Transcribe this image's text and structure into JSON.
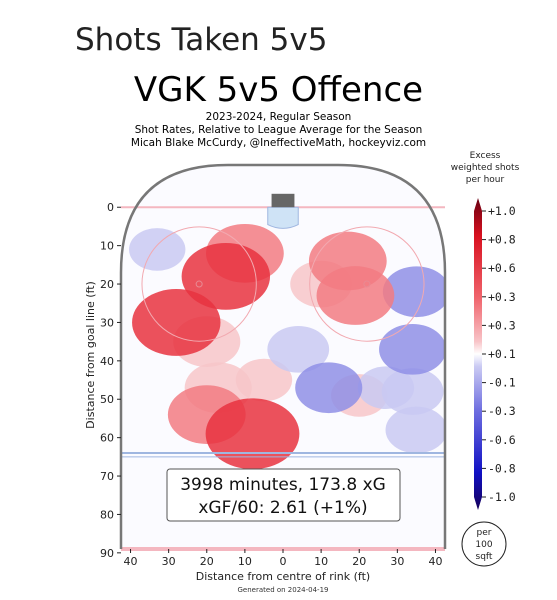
{
  "page_title": "Shots Taken 5v5",
  "chart_data": {
    "type": "heatmap",
    "title": "VGK 5v5 Offence",
    "subtitle_lines": [
      "2023-2024, Regular Season",
      "Shot Rates, Relative to League Average for the Season",
      "Micah Blake McCurdy, @IneffectiveMath, hockeyviz.com"
    ],
    "xlabel": "Distance from centre of rink (ft)",
    "ylabel": "Distance from goal line (ft)",
    "x_ticks": [
      "40",
      "30",
      "20",
      "10",
      "0",
      "10",
      "20",
      "30",
      "40"
    ],
    "y_ticks": [
      "0",
      "10",
      "20",
      "30",
      "40",
      "50",
      "60",
      "70",
      "80",
      "90"
    ],
    "x_range": [
      -42.5,
      42.5
    ],
    "y_range": [
      -11,
      89
    ],
    "colorbar": {
      "title_lines": [
        "Excess",
        "weighted shots",
        "per hour"
      ],
      "tick_labels": [
        "+1.0",
        "+0.8",
        "+0.6",
        "+0.3",
        "+0.3",
        "+0.1",
        "-0.1",
        "-0.3",
        "-0.6",
        "-0.8",
        "-1.0"
      ],
      "range": [
        -1.0,
        1.0
      ]
    },
    "unit_badge_lines": [
      "per",
      "100",
      "sqft"
    ],
    "summary_lines": [
      "3998 minutes, 173.8 xG",
      "xGF/60: 2.61 (+1%)"
    ],
    "minutes": 3998,
    "xG": 173.8,
    "xGF60": 2.61,
    "xGF60_relative": "+1%",
    "excess_regions": [
      {
        "x": -10,
        "y": 12,
        "value": 0.3
      },
      {
        "x": -15,
        "y": 18,
        "value": 0.4
      },
      {
        "x": -28,
        "y": 30,
        "value": 0.4
      },
      {
        "x": -20,
        "y": 35,
        "value": 0.2
      },
      {
        "x": -5,
        "y": 45,
        "value": 0.1
      },
      {
        "x": -17,
        "y": 47,
        "value": 0.2
      },
      {
        "x": -20,
        "y": 54,
        "value": 0.3
      },
      {
        "x": -8,
        "y": 59,
        "value": 0.45
      },
      {
        "x": 17,
        "y": 14,
        "value": 0.3
      },
      {
        "x": 19,
        "y": 23,
        "value": 0.3
      },
      {
        "x": 10,
        "y": 20,
        "value": 0.15
      },
      {
        "x": 20,
        "y": 49,
        "value": 0.1
      },
      {
        "x": -33,
        "y": 11,
        "value": -0.1
      },
      {
        "x": 35,
        "y": 22,
        "value": -0.2
      },
      {
        "x": 34,
        "y": 37,
        "value": -0.2
      },
      {
        "x": 4,
        "y": 37,
        "value": -0.15
      },
      {
        "x": 12,
        "y": 47,
        "value": -0.2
      },
      {
        "x": 34,
        "y": 48,
        "value": -0.15
      },
      {
        "x": 35,
        "y": 58,
        "value": -0.15
      },
      {
        "x": 27,
        "y": 47,
        "value": -0.1
      }
    ],
    "generated_note": "Generated on 2024-04-19"
  },
  "colors": {
    "pos_strong": "#e8323f",
    "pos_mid": "#f27b82",
    "pos_light": "#f7c6c9",
    "neg_light": "#c9c9f2",
    "neg_mid": "#8f8fe6",
    "neg_strong": "#2222c8",
    "rink_line": "#777777",
    "blue_line": "#9fb6e0",
    "goal_line": "#f4b7c0"
  }
}
